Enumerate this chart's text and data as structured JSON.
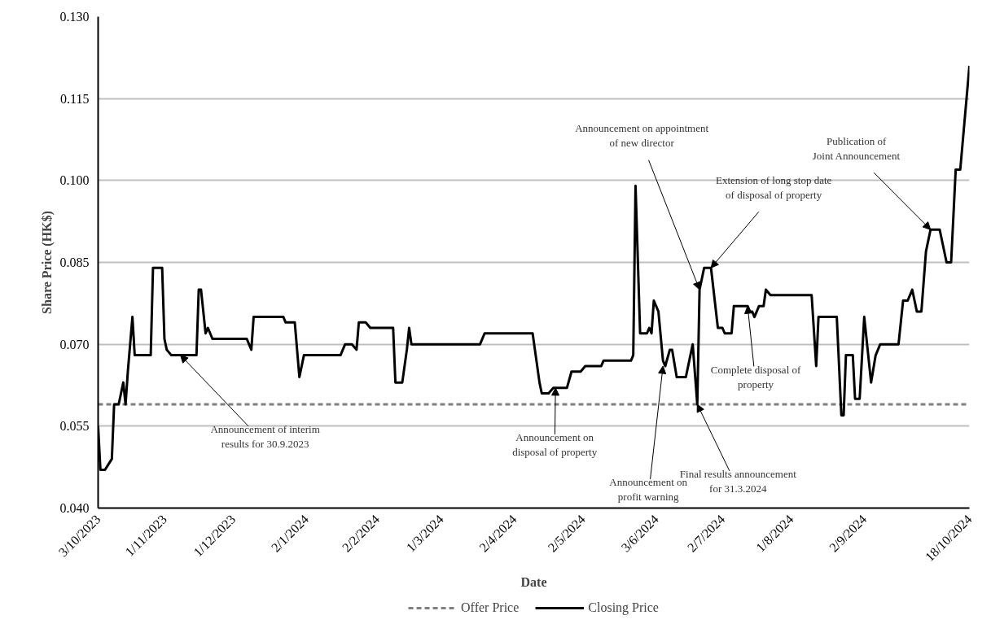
{
  "chart_data": {
    "type": "line",
    "xlabel": "Date",
    "ylabel": "Share Price (HK$)",
    "xlim": [
      "2023-10-03",
      "2024-10-18"
    ],
    "ylim": [
      0.04,
      0.13
    ],
    "xticks": [
      {
        "value": "2023-10-03",
        "label": "3/10/2023"
      },
      {
        "value": "2023-11-01",
        "label": "1/11/2023"
      },
      {
        "value": "2023-12-01",
        "label": "1/12/2023"
      },
      {
        "value": "2024-01-02",
        "label": "2/1/2024"
      },
      {
        "value": "2024-02-02",
        "label": "2/2/2024"
      },
      {
        "value": "2024-03-01",
        "label": "1/3/2024"
      },
      {
        "value": "2024-04-02",
        "label": "2/4/2024"
      },
      {
        "value": "2024-05-02",
        "label": "2/5/2024"
      },
      {
        "value": "2024-06-03",
        "label": "3/6/2024"
      },
      {
        "value": "2024-07-02",
        "label": "2/7/2024"
      },
      {
        "value": "2024-08-01",
        "label": "1/8/2024"
      },
      {
        "value": "2024-09-02",
        "label": "2/9/2024"
      },
      {
        "value": "2024-10-18",
        "label": "18/10/2024"
      }
    ],
    "yticks": [
      {
        "value": 0.04,
        "label": "0.040"
      },
      {
        "value": 0.055,
        "label": "0.055"
      },
      {
        "value": 0.07,
        "label": "0.070"
      },
      {
        "value": 0.085,
        "label": "0.085"
      },
      {
        "value": 0.1,
        "label": "0.100"
      },
      {
        "value": 0.115,
        "label": "0.115"
      },
      {
        "value": 0.13,
        "label": "0.130"
      }
    ],
    "grid": "y",
    "legend": "bottom",
    "series": [
      {
        "name": "Offer Price",
        "color": "#808080",
        "line_style": "dashed",
        "x": [
          "2023-10-03",
          "2024-10-18"
        ],
        "values": [
          0.059,
          0.059
        ]
      },
      {
        "name": "Closing Price",
        "color": "#000000",
        "line_style": "solid",
        "x": [
          "2023-10-03",
          "2023-10-04",
          "2023-10-06",
          "2023-10-09",
          "2023-10-10",
          "2023-10-12",
          "2023-10-14",
          "2023-10-15",
          "2023-10-16",
          "2023-10-18",
          "2023-10-19",
          "2023-10-26",
          "2023-10-27",
          "2023-10-31",
          "2023-11-01",
          "2023-11-02",
          "2023-11-04",
          "2023-11-15",
          "2023-11-16",
          "2023-11-17",
          "2023-11-19",
          "2023-11-20",
          "2023-11-22",
          "2023-12-07",
          "2023-12-09",
          "2023-12-10",
          "2023-12-23",
          "2023-12-24",
          "2023-12-28",
          "2023-12-30",
          "2024-01-01",
          "2024-01-17",
          "2024-01-19",
          "2024-01-22",
          "2024-01-24",
          "2024-01-25",
          "2024-01-28",
          "2024-01-30",
          "2024-02-09",
          "2024-02-10",
          "2024-02-13",
          "2024-02-15",
          "2024-02-16",
          "2024-02-17",
          "2024-03-18",
          "2024-03-20",
          "2024-04-10",
          "2024-04-11",
          "2024-04-13",
          "2024-04-14",
          "2024-04-17",
          "2024-04-19",
          "2024-04-25",
          "2024-04-27",
          "2024-05-01",
          "2024-05-03",
          "2024-05-10",
          "2024-05-11",
          "2024-05-23",
          "2024-05-24",
          "2024-05-25",
          "2024-05-27",
          "2024-05-30",
          "2024-05-31",
          "2024-06-01",
          "2024-06-02",
          "2024-06-04",
          "2024-06-06",
          "2024-06-07",
          "2024-06-09",
          "2024-06-10",
          "2024-06-12",
          "2024-06-16",
          "2024-06-18",
          "2024-06-19",
          "2024-06-21",
          "2024-06-22",
          "2024-06-24",
          "2024-06-27",
          "2024-06-30",
          "2024-07-02",
          "2024-07-03",
          "2024-07-06",
          "2024-07-07",
          "2024-07-13",
          "2024-07-14",
          "2024-07-15",
          "2024-07-16",
          "2024-07-18",
          "2024-07-20",
          "2024-07-21",
          "2024-07-23",
          "2024-08-10",
          "2024-08-12",
          "2024-08-13",
          "2024-08-21",
          "2024-08-23",
          "2024-08-24",
          "2024-08-25",
          "2024-08-28",
          "2024-08-29",
          "2024-08-31",
          "2024-09-02",
          "2024-09-05",
          "2024-09-07",
          "2024-09-09",
          "2024-09-17",
          "2024-09-19",
          "2024-09-21",
          "2024-09-23",
          "2024-09-25",
          "2024-09-27",
          "2024-09-29",
          "2024-10-01",
          "2024-10-05",
          "2024-10-08",
          "2024-10-10",
          "2024-10-12",
          "2024-10-14",
          "2024-10-18"
        ],
        "values": [
          0.055,
          0.047,
          0.047,
          0.049,
          0.059,
          0.059,
          0.063,
          0.059,
          0.065,
          0.075,
          0.068,
          0.068,
          0.084,
          0.084,
          0.071,
          0.069,
          0.068,
          0.068,
          0.08,
          0.08,
          0.072,
          0.073,
          0.071,
          0.071,
          0.069,
          0.075,
          0.075,
          0.074,
          0.074,
          0.064,
          0.068,
          0.068,
          0.07,
          0.07,
          0.069,
          0.074,
          0.074,
          0.073,
          0.073,
          0.063,
          0.063,
          0.069,
          0.073,
          0.07,
          0.07,
          0.072,
          0.072,
          0.069,
          0.063,
          0.061,
          0.061,
          0.062,
          0.062,
          0.065,
          0.065,
          0.066,
          0.066,
          0.067,
          0.067,
          0.068,
          0.099,
          0.072,
          0.072,
          0.073,
          0.072,
          0.078,
          0.076,
          0.067,
          0.066,
          0.069,
          0.069,
          0.064,
          0.064,
          0.068,
          0.07,
          0.059,
          0.08,
          0.084,
          0.084,
          0.073,
          0.073,
          0.072,
          0.072,
          0.077,
          0.077,
          0.076,
          0.076,
          0.075,
          0.077,
          0.077,
          0.08,
          0.079,
          0.079,
          0.066,
          0.075,
          0.075,
          0.057,
          0.057,
          0.068,
          0.068,
          0.06,
          0.06,
          0.075,
          0.063,
          0.068,
          0.07,
          0.07,
          0.078,
          0.078,
          0.08,
          0.076,
          0.076,
          0.087,
          0.091,
          0.091,
          0.085,
          0.085,
          0.102,
          0.102,
          0.121
        ]
      }
    ],
    "annotations": [
      {
        "text": "Announcement of interim\nresults for 30.9.2023",
        "x": "2023-11-08",
        "y": 0.068
      },
      {
        "text": "Announcement on\ndisposal of property",
        "x": "2024-04-20",
        "y": 0.062
      },
      {
        "text": "Announcement on\nprofit warning",
        "x": "2024-06-06",
        "y": 0.066
      },
      {
        "text": "Final results announcement\nfor 31.3.2024",
        "x": "2024-06-21",
        "y": 0.059
      },
      {
        "text": "Announcement on appointment\nof new director",
        "x": "2024-06-22",
        "y": 0.08
      },
      {
        "text": "Extension of long stop date\nof disposal of property",
        "x": "2024-06-27",
        "y": 0.084
      },
      {
        "text": "Complete disposal of\nproperty",
        "x": "2024-07-13",
        "y": 0.077
      },
      {
        "text": "Publication of\nJoint Announcement",
        "x": "2024-10-01",
        "y": 0.091
      }
    ]
  }
}
